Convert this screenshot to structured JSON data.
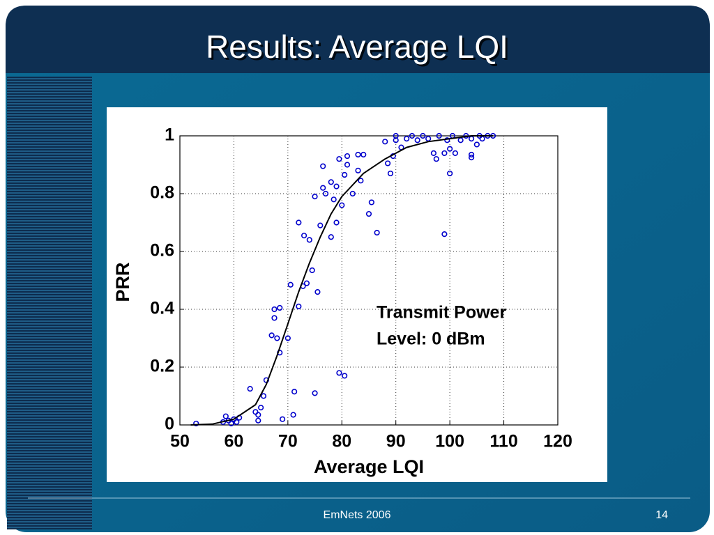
{
  "slide": {
    "title": "Results: Average LQI",
    "footer": "EmNets 2006",
    "page": "14"
  },
  "chart_data": {
    "type": "scatter",
    "xlabel": "Average LQI",
    "ylabel": "PRR",
    "annotation": [
      "Transmit Power",
      "Level: 0 dBm"
    ],
    "xlim": [
      50,
      120
    ],
    "ylim": [
      0,
      1
    ],
    "xticks": [
      50,
      60,
      70,
      80,
      90,
      100,
      110,
      120
    ],
    "yticks": [
      0,
      0.2,
      0.4,
      0.6,
      0.8,
      1
    ],
    "grid": true,
    "color": "#0000cc",
    "x": [
      53,
      58,
      58.5,
      59,
      59.5,
      60,
      60.5,
      61,
      63,
      64,
      64.5,
      64.5,
      65,
      65.5,
      66,
      67,
      67.5,
      67.5,
      68,
      68.5,
      68.5,
      69,
      70,
      70.5,
      71,
      71.2,
      72,
      72,
      72.8,
      73,
      73.5,
      74,
      74.5,
      75,
      75,
      75.5,
      76,
      76.5,
      76.5,
      77,
      78,
      78,
      78.5,
      79,
      79,
      79.5,
      79.5,
      80,
      80.5,
      80.5,
      81,
      81,
      82,
      83,
      83,
      83.5,
      84,
      85,
      85.5,
      86.5,
      88,
      88.5,
      89,
      89.5,
      90,
      90,
      91,
      92,
      93,
      94,
      95,
      96,
      97,
      97.5,
      98,
      99,
      99,
      99.5,
      100,
      100,
      100.5,
      101,
      102,
      103,
      104,
      104,
      104,
      105,
      105.5,
      106,
      107,
      108
    ],
    "values": [
      0.005,
      0.01,
      0.03,
      0.015,
      0.005,
      0.02,
      0.01,
      0.025,
      0.125,
      0.045,
      0.015,
      0.035,
      0.06,
      0.1,
      0.155,
      0.31,
      0.4,
      0.37,
      0.3,
      0.25,
      0.405,
      0.02,
      0.3,
      0.485,
      0.035,
      0.115,
      0.41,
      0.7,
      0.48,
      0.655,
      0.49,
      0.64,
      0.535,
      0.11,
      0.79,
      0.46,
      0.69,
      0.895,
      0.82,
      0.8,
      0.65,
      0.84,
      0.78,
      0.825,
      0.7,
      0.92,
      0.18,
      0.76,
      0.865,
      0.17,
      0.93,
      0.9,
      0.8,
      0.935,
      0.88,
      0.845,
      0.935,
      0.73,
      0.77,
      0.665,
      0.98,
      0.905,
      0.87,
      0.93,
      1.0,
      0.985,
      0.96,
      0.99,
      1.0,
      0.985,
      1.0,
      0.99,
      0.94,
      0.92,
      1.0,
      0.66,
      0.94,
      0.985,
      0.955,
      0.87,
      1.0,
      0.94,
      0.985,
      1.0,
      0.99,
      0.935,
      0.925,
      0.97,
      1.0,
      0.99,
      1.0,
      1.0
    ],
    "fit": {
      "color": "#000000",
      "x": [
        52,
        56,
        60,
        64,
        66,
        68,
        70,
        72,
        74,
        76,
        78,
        80,
        84,
        88,
        92,
        96,
        100,
        104,
        108
      ],
      "values": [
        0,
        0.003,
        0.02,
        0.07,
        0.14,
        0.24,
        0.35,
        0.46,
        0.56,
        0.65,
        0.73,
        0.79,
        0.87,
        0.92,
        0.96,
        0.98,
        0.99,
        1.0,
        1.0
      ]
    }
  }
}
